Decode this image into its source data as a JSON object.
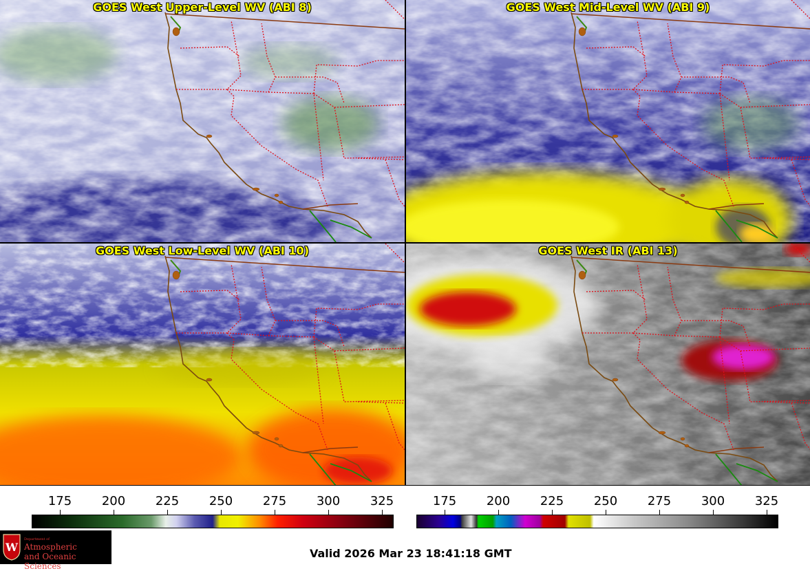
{
  "panels": [
    {
      "id": "upper",
      "title": "GOES West Upper-Level WV (ABI 8)"
    },
    {
      "id": "mid",
      "title": "GOES West Mid-Level WV (ABI 9)"
    },
    {
      "id": "low",
      "title": "GOES West Low-Level WV (ABI 10)"
    },
    {
      "id": "ir",
      "title": "GOES West IR (ABI 13)"
    }
  ],
  "colorbars": {
    "wv": {
      "ticks": [
        "175",
        "200",
        "225",
        "250",
        "275",
        "300",
        "325"
      ]
    },
    "ir": {
      "ticks": [
        "175",
        "200",
        "225",
        "250",
        "275",
        "300",
        "325"
      ]
    }
  },
  "logo": {
    "department": "Department of",
    "name_line1": "Atmospheric",
    "name_line2": "and Oceanic Sciences"
  },
  "valid_time": "Valid 2026 Mar 23 18:41:18 GMT",
  "colors": {
    "title_text": "#ffff00",
    "border_state": "#e0101a",
    "coast": "#7a3a10",
    "background": "#ffffff"
  }
}
